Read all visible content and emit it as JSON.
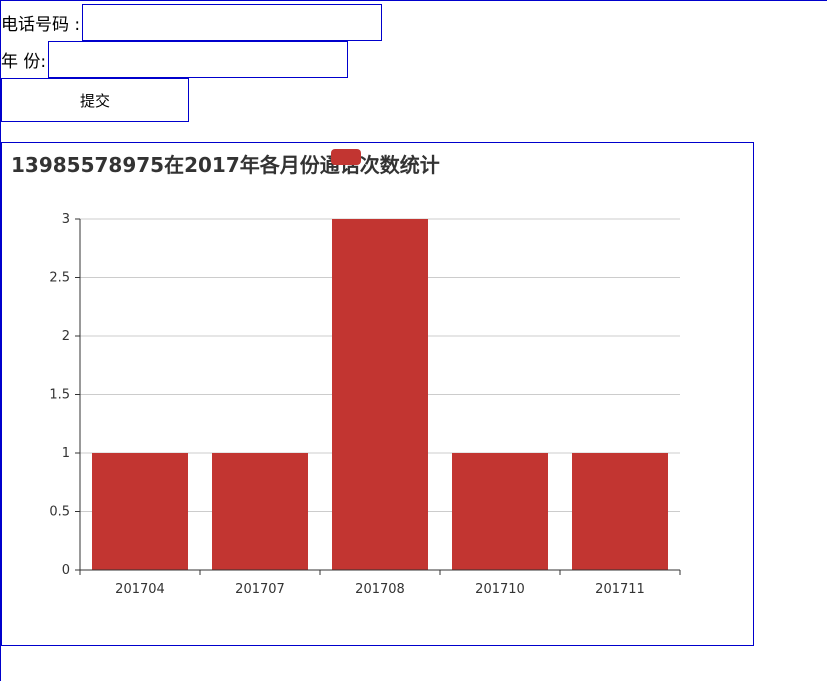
{
  "form": {
    "phone_label": "电话号码 :",
    "phone_value": "",
    "year_label": "年 份:",
    "year_value": "",
    "submit_label": "提交"
  },
  "chart_data": {
    "type": "bar",
    "title": "13985578975在2017年各月份通话次数统计",
    "categories": [
      "201704",
      "201707",
      "201708",
      "201710",
      "201711"
    ],
    "values": [
      1,
      1,
      3,
      1,
      1
    ],
    "ylim": [
      0,
      3
    ],
    "yticks": [
      "0",
      "0.5",
      "1",
      "1.5",
      "2",
      "2.5",
      "3"
    ],
    "ytick_values": [
      0,
      0.5,
      1,
      1.5,
      2,
      2.5,
      3
    ],
    "bar_color": "#c23531",
    "grid": true,
    "legend_marker_color": "#c23531"
  }
}
